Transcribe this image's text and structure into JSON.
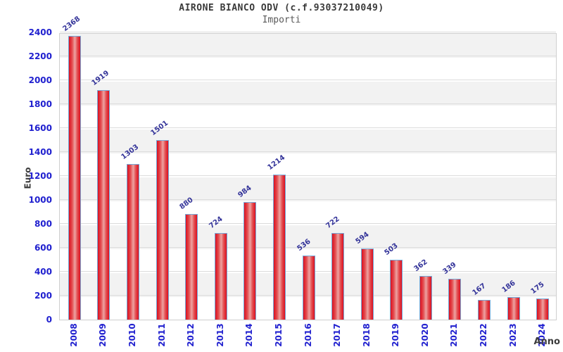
{
  "header": {
    "title": "AIRONE BIANCO ODV (c.f.93037210049)",
    "subtitle": "Importi"
  },
  "chart_data": {
    "type": "bar",
    "title": "AIRONE BIANCO ODV (c.f.93037210049)",
    "subtitle": "Importi",
    "xlabel": "Anno",
    "ylabel": "Euro",
    "categories": [
      "2008",
      "2009",
      "2010",
      "2011",
      "2012",
      "2013",
      "2014",
      "2015",
      "2016",
      "2017",
      "2018",
      "2019",
      "2020",
      "2021",
      "2022",
      "2023",
      "2024"
    ],
    "values": [
      2368,
      1919,
      1303,
      1501,
      880,
      724,
      984,
      1214,
      536,
      722,
      594,
      503,
      362,
      339,
      167,
      186,
      175
    ],
    "ylim": [
      0,
      2400
    ],
    "ytick_step": 200,
    "yticks": [
      0,
      200,
      400,
      600,
      800,
      1000,
      1200,
      1400,
      1600,
      1800,
      2000,
      2200,
      2400
    ],
    "grid": true,
    "legend": "none",
    "colors": {
      "bar_edge_red": "#dc1020",
      "bar_center_pink": "#eda3a2",
      "bar_border_blue": "#74a9d8",
      "axis_tick_blue": "#2020cf",
      "value_label_navy": "#333399",
      "band_gray": "#f2f2f2",
      "plot_border_gray": "#cfcfcf",
      "text_dark_gray": "#3c3c3c"
    }
  }
}
